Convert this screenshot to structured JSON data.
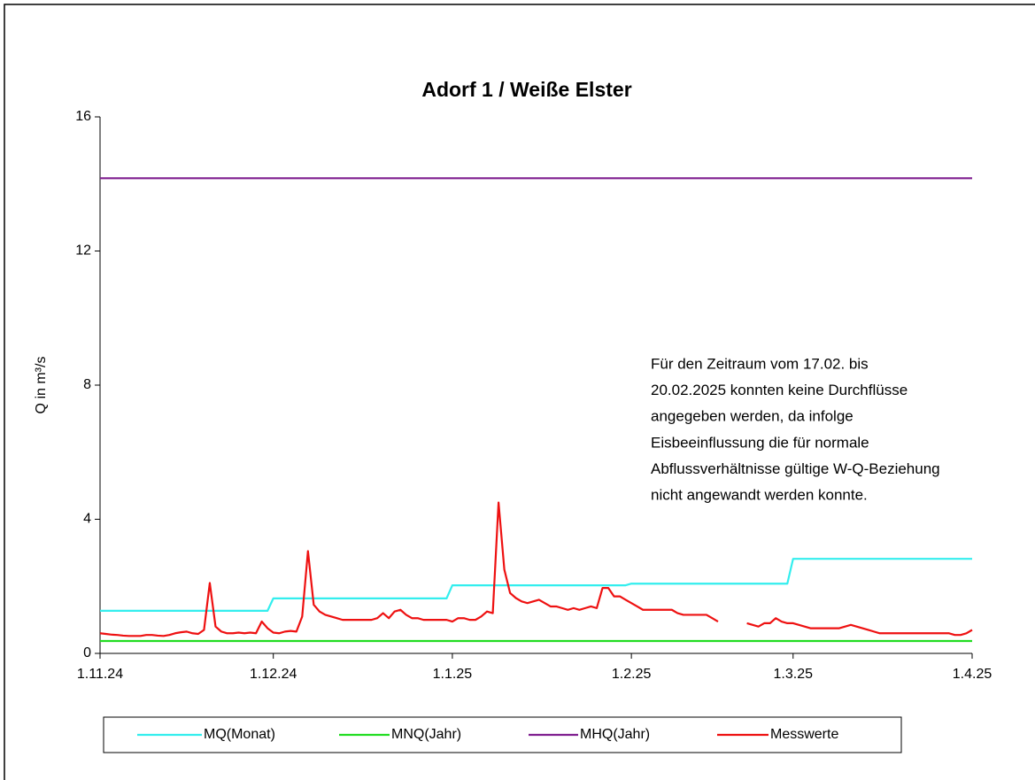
{
  "chart_data": {
    "type": "line",
    "title": "Adorf 1 / Weiße Elster",
    "y_label": "Q in m³/s",
    "annotation": [
      "Für den Zeitraum vom 17.02. bis",
      "20.02.2025 konnten keine Durchflüsse",
      "angegeben werden, da infolge",
      "Eisbeeinflussung die für normale",
      "Abflussverhältnisse gültige W-Q-Beziehung",
      "nicht angewandt werden konnte."
    ],
    "xlim": [
      "2024-11-01",
      "2025-04-01"
    ],
    "xticks": [
      {
        "value": "2024-11-01",
        "label": "1.11.24"
      },
      {
        "value": "2024-12-01",
        "label": "1.12.24"
      },
      {
        "value": "2025-01-01",
        "label": "1.1.25"
      },
      {
        "value": "2025-02-01",
        "label": "1.2.25"
      },
      {
        "value": "2025-03-01",
        "label": "1.3.25"
      },
      {
        "value": "2025-04-01",
        "label": "1.4.25"
      }
    ],
    "ylim": [
      0,
      16
    ],
    "yticks": [
      0,
      4,
      8,
      12,
      16
    ],
    "x": [
      "2024-11-01",
      "2024-11-02",
      "2024-11-03",
      "2024-11-04",
      "2024-11-05",
      "2024-11-06",
      "2024-11-07",
      "2024-11-08",
      "2024-11-09",
      "2024-11-10",
      "2024-11-11",
      "2024-11-12",
      "2024-11-13",
      "2024-11-14",
      "2024-11-15",
      "2024-11-16",
      "2024-11-17",
      "2024-11-18",
      "2024-11-19",
      "2024-11-20",
      "2024-11-21",
      "2024-11-22",
      "2024-11-23",
      "2024-11-24",
      "2024-11-25",
      "2024-11-26",
      "2024-11-27",
      "2024-11-28",
      "2024-11-29",
      "2024-11-30",
      "2024-12-01",
      "2024-12-02",
      "2024-12-03",
      "2024-12-04",
      "2024-12-05",
      "2024-12-06",
      "2024-12-07",
      "2024-12-08",
      "2024-12-09",
      "2024-12-10",
      "2024-12-11",
      "2024-12-12",
      "2024-12-13",
      "2024-12-14",
      "2024-12-15",
      "2024-12-16",
      "2024-12-17",
      "2024-12-18",
      "2024-12-19",
      "2024-12-20",
      "2024-12-21",
      "2024-12-22",
      "2024-12-23",
      "2024-12-24",
      "2024-12-25",
      "2024-12-26",
      "2024-12-27",
      "2024-12-28",
      "2024-12-29",
      "2024-12-30",
      "2024-12-31",
      "2025-01-01",
      "2025-01-02",
      "2025-01-03",
      "2025-01-04",
      "2025-01-05",
      "2025-01-06",
      "2025-01-07",
      "2025-01-08",
      "2025-01-09",
      "2025-01-10",
      "2025-01-11",
      "2025-01-12",
      "2025-01-13",
      "2025-01-14",
      "2025-01-15",
      "2025-01-16",
      "2025-01-17",
      "2025-01-18",
      "2025-01-19",
      "2025-01-20",
      "2025-01-21",
      "2025-01-22",
      "2025-01-23",
      "2025-01-24",
      "2025-01-25",
      "2025-01-26",
      "2025-01-27",
      "2025-01-28",
      "2025-01-29",
      "2025-01-30",
      "2025-01-31",
      "2025-02-01",
      "2025-02-02",
      "2025-02-03",
      "2025-02-04",
      "2025-02-05",
      "2025-02-06",
      "2025-02-07",
      "2025-02-08",
      "2025-02-09",
      "2025-02-10",
      "2025-02-11",
      "2025-02-12",
      "2025-02-13",
      "2025-02-14",
      "2025-02-15",
      "2025-02-16",
      "2025-02-17",
      "2025-02-18",
      "2025-02-19",
      "2025-02-20",
      "2025-02-21",
      "2025-02-22",
      "2025-02-23",
      "2025-02-24",
      "2025-02-25",
      "2025-02-26",
      "2025-02-27",
      "2025-02-28",
      "2025-03-01",
      "2025-03-02",
      "2025-03-03",
      "2025-03-04",
      "2025-03-05",
      "2025-03-06",
      "2025-03-07",
      "2025-03-08",
      "2025-03-09",
      "2025-03-10",
      "2025-03-11",
      "2025-03-12",
      "2025-03-13",
      "2025-03-14",
      "2025-03-15",
      "2025-03-16",
      "2025-03-17",
      "2025-03-18",
      "2025-03-19",
      "2025-03-20",
      "2025-03-21",
      "2025-03-22",
      "2025-03-23",
      "2025-03-24",
      "2025-03-25",
      "2025-03-26",
      "2025-03-27",
      "2025-03-28",
      "2025-03-29",
      "2025-03-30",
      "2025-03-31",
      "2025-04-01"
    ],
    "series": [
      {
        "name": "MQ(Monat)",
        "color": "#33eeee",
        "x": [
          "2024-11-01",
          "2024-11-30",
          "2024-12-01",
          "2024-12-31",
          "2025-01-01",
          "2025-01-31",
          "2025-02-01",
          "2025-02-28",
          "2025-03-01",
          "2025-04-01"
        ],
        "values": [
          1.27,
          1.27,
          1.64,
          1.64,
          2.03,
          2.03,
          2.08,
          2.08,
          2.82,
          2.82
        ]
      },
      {
        "name": "MNQ(Jahr)",
        "color": "#22dd22",
        "x": [
          "2024-11-01",
          "2025-04-01"
        ],
        "values": [
          0.37,
          0.37
        ]
      },
      {
        "name": "MHQ(Jahr)",
        "color": "#7f1f8f",
        "x": [
          "2024-11-01",
          "2025-04-01"
        ],
        "values": [
          14.17,
          14.17
        ]
      },
      {
        "name": "Messwerte",
        "color": "#ee1111",
        "values": [
          0.6,
          0.58,
          0.56,
          0.55,
          0.53,
          0.52,
          0.52,
          0.52,
          0.55,
          0.55,
          0.53,
          0.52,
          0.55,
          0.6,
          0.63,
          0.65,
          0.6,
          0.58,
          0.7,
          2.1,
          0.8,
          0.65,
          0.6,
          0.6,
          0.62,
          0.6,
          0.62,
          0.6,
          0.95,
          0.75,
          0.62,
          0.6,
          0.65,
          0.67,
          0.65,
          1.1,
          3.05,
          1.45,
          1.25,
          1.15,
          1.1,
          1.05,
          1.0,
          1.0,
          1.0,
          1.0,
          1.0,
          1.0,
          1.05,
          1.2,
          1.05,
          1.25,
          1.3,
          1.15,
          1.05,
          1.05,
          1.0,
          1.0,
          1.0,
          1.0,
          1.0,
          0.95,
          1.05,
          1.05,
          1.0,
          1.0,
          1.1,
          1.25,
          1.2,
          4.5,
          2.5,
          1.8,
          1.65,
          1.55,
          1.5,
          1.55,
          1.6,
          1.5,
          1.4,
          1.4,
          1.35,
          1.3,
          1.35,
          1.3,
          1.35,
          1.4,
          1.35,
          1.95,
          1.95,
          1.7,
          1.7,
          1.6,
          1.5,
          1.4,
          1.3,
          1.3,
          1.3,
          1.3,
          1.3,
          1.3,
          1.2,
          1.15,
          1.15,
          1.15,
          1.15,
          1.15,
          1.05,
          0.95,
          null,
          null,
          null,
          null,
          0.9,
          0.85,
          0.8,
          0.9,
          0.9,
          1.05,
          0.95,
          0.9,
          0.9,
          0.85,
          0.8,
          0.75,
          0.75,
          0.75,
          0.75,
          0.75,
          0.75,
          0.8,
          0.85,
          0.8,
          0.75,
          0.7,
          0.65,
          0.6,
          0.6,
          0.6,
          0.6,
          0.6,
          0.6,
          0.6,
          0.6,
          0.6,
          0.6,
          0.6,
          0.6,
          0.6,
          0.55,
          0.55,
          0.6,
          0.7
        ]
      }
    ]
  }
}
